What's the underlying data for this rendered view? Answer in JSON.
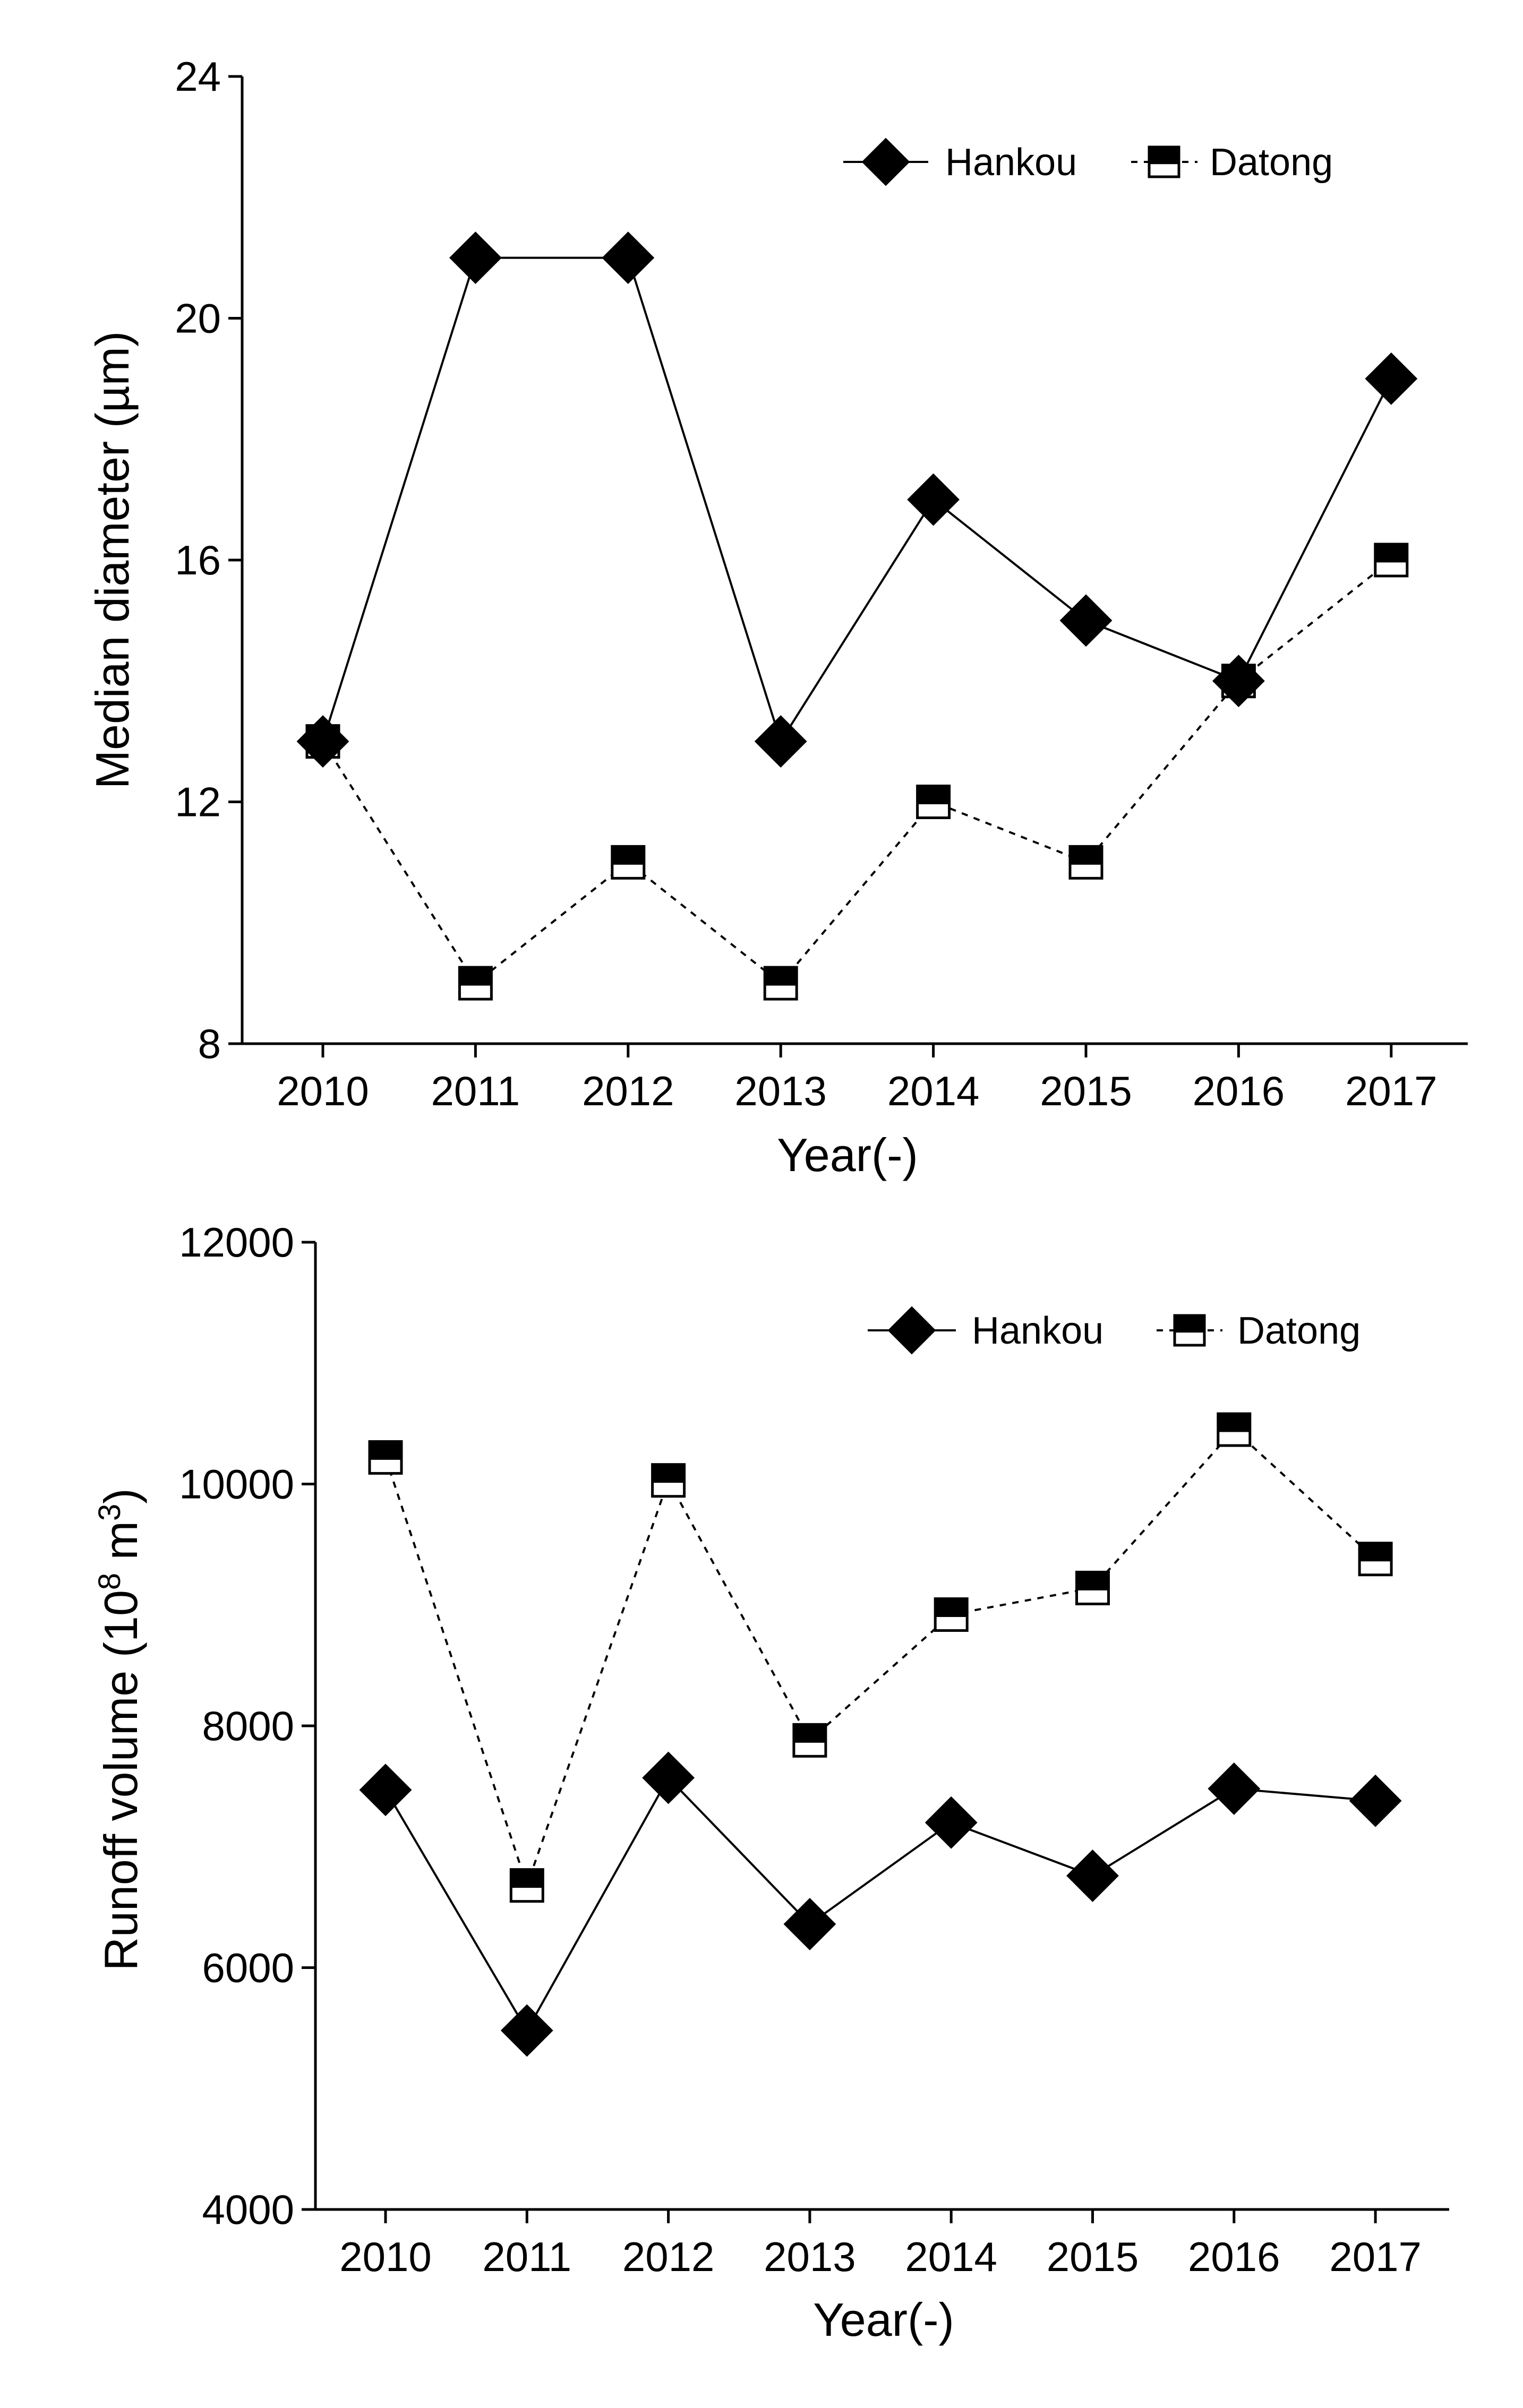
{
  "chart_data": [
    {
      "type": "line",
      "title": "",
      "xlabel": "Year(-)",
      "ylabel": "Median diameter (µm)",
      "categories": [
        "2010",
        "2011",
        "2012",
        "2013",
        "2014",
        "2015",
        "2016",
        "2017"
      ],
      "ylim": [
        8,
        24
      ],
      "yticks": [
        8,
        12,
        16,
        20,
        24
      ],
      "ytick_labels": [
        "8",
        "12",
        "16",
        "20",
        "24"
      ],
      "legend_position": "top-right",
      "series": [
        {
          "name": "Hankou",
          "marker": "diamond-filled",
          "line": "solid",
          "values": [
            13,
            21,
            21,
            13,
            17,
            15,
            14,
            19
          ]
        },
        {
          "name": "Datong",
          "marker": "square-half-filled",
          "line": "dotted",
          "values": [
            13,
            9,
            11,
            9,
            12,
            11,
            14,
            16
          ]
        }
      ]
    },
    {
      "type": "line",
      "title": "",
      "xlabel": "Year(-)",
      "ylabel": "Runoff volume (10",
      "ylabel_sup1": "8",
      "ylabel_mid": " m",
      "ylabel_sup2": "3",
      "ylabel_end": ")",
      "categories": [
        "2010",
        "2011",
        "2012",
        "2013",
        "2014",
        "2015",
        "2016",
        "2017"
      ],
      "ylim": [
        4000,
        12000
      ],
      "yticks": [
        4000,
        6000,
        8000,
        10000,
        12000
      ],
      "ytick_labels": [
        "4000",
        "6000",
        "8000",
        "10000",
        "12000"
      ],
      "legend_position": "top-right",
      "series": [
        {
          "name": "Hankou",
          "marker": "diamond-filled",
          "line": "solid",
          "values": [
            7470,
            5480,
            7570,
            6360,
            7200,
            6760,
            7480,
            7380
          ]
        },
        {
          "name": "Datong",
          "marker": "square-half-filled",
          "line": "dotted",
          "values": [
            10220,
            6680,
            10030,
            7880,
            8920,
            9140,
            10450,
            9380
          ]
        }
      ]
    }
  ]
}
